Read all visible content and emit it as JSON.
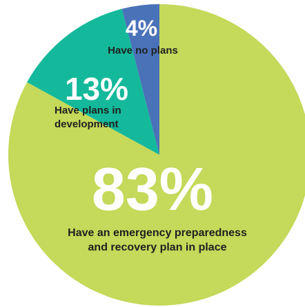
{
  "chart_data": {
    "type": "pie",
    "slices": [
      {
        "label": "83%",
        "value": 83,
        "description": [
          "Have an emergency preparedness",
          "and recovery plan in place"
        ],
        "color": "#c5d95a",
        "label_color": "#ffffff",
        "desc_color": "#1f1f1f"
      },
      {
        "label": "13%",
        "value": 13,
        "description": [
          "Have plans in",
          "development"
        ],
        "color": "#14b99b",
        "label_color": "#ffffff",
        "desc_color": "#1f1f1f"
      },
      {
        "label": "4%",
        "value": 4,
        "description": [
          "Have no plans"
        ],
        "color": "#4a72b8",
        "label_color": "#ffffff",
        "desc_color": "#1f1f1f"
      }
    ],
    "start_angle": "top",
    "direction": "counterclockwise"
  }
}
